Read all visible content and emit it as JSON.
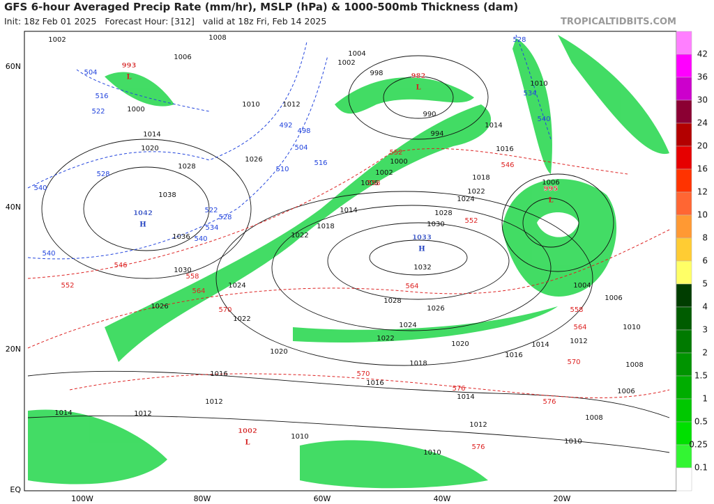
{
  "header": {
    "title": "GFS 6-hour Averaged Precip Rate (mm/hr), MSLP (hPa) & 1000-500mb Thickness (dam)",
    "subtitle": "Init: 18z Feb 01 2025   Forecast Hour: [312]   valid at 18z Fri, Feb 14 2025",
    "credit": "TROPICALTIDBITS.COM"
  },
  "map": {
    "lat_labels": [
      "60N",
      "40N",
      "20N",
      "EQ"
    ],
    "lon_labels": [
      "100W",
      "80W",
      "60W",
      "40W",
      "20W"
    ],
    "centers": [
      {
        "kind": "L",
        "pressure": 993
      },
      {
        "kind": "L",
        "pressure": 982
      },
      {
        "kind": "L",
        "pressure": 995
      },
      {
        "kind": "L",
        "pressure": 1002
      },
      {
        "kind": "H",
        "pressure": 1042
      },
      {
        "kind": "H",
        "pressure": 1033
      }
    ],
    "isobar_labels": [
      1002,
      1008,
      1006,
      1004,
      1002,
      998,
      1010,
      1012,
      1000,
      1014,
      1020,
      1026,
      1028,
      1038,
      1036,
      1030,
      1024,
      1026,
      1022,
      1020,
      1016,
      1012,
      1012,
      1010,
      1014,
      1028,
      1030,
      1032,
      1028,
      1026,
      1024,
      1022,
      1020,
      1018,
      1016,
      1014,
      1012,
      1010,
      1014,
      1016,
      1010,
      1006,
      1004,
      1006,
      1010,
      1008,
      1006,
      1008,
      1010,
      1014,
      1012,
      1016,
      1018,
      1022,
      1024,
      1000,
      1002,
      1006,
      1014,
      1018,
      1022,
      990,
      994
    ],
    "thickness_red_labels": [
      552,
      546,
      558,
      552,
      564,
      570,
      564,
      558,
      552,
      546,
      570,
      576,
      570,
      576,
      576,
      564,
      558
    ],
    "thickness_blue_labels": [
      504,
      516,
      522,
      492,
      498,
      504,
      510,
      516,
      522,
      528,
      534,
      540,
      528,
      540,
      540,
      528,
      534,
      540
    ]
  },
  "colorbar": {
    "levels": [
      42,
      36,
      30,
      24,
      20,
      16,
      12,
      10,
      8,
      6,
      5,
      4,
      3,
      2,
      1.5,
      1,
      0.5,
      0.25,
      0.1
    ],
    "colors": [
      "#ff7fff",
      "#ff00ff",
      "#cc00cc",
      "#8b0033",
      "#b30000",
      "#e60000",
      "#ff3300",
      "#ff6633",
      "#ff9933",
      "#ffcc33",
      "#ffff66",
      "#003d00",
      "#005c00",
      "#007a00",
      "#009400",
      "#00ad00",
      "#00c800",
      "#00e000",
      "#33f533",
      "#ffffff"
    ]
  }
}
